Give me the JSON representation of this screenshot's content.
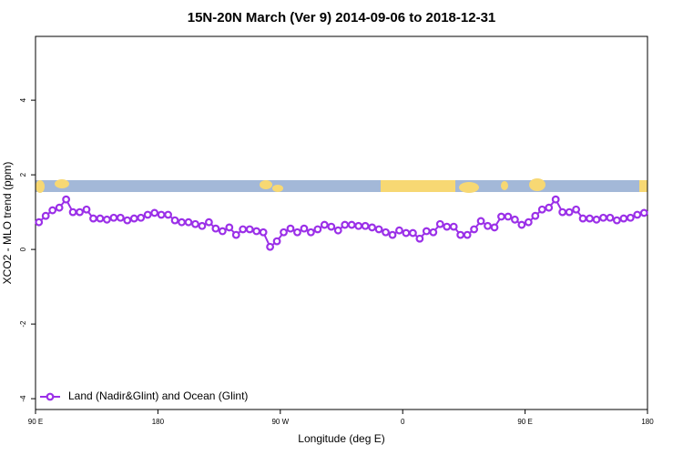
{
  "chart_data": {
    "type": "line",
    "title": "15N-20N March (Ver 9)   2014-09-06 to 2018-12-31",
    "xlabel": "Longitude (deg E)",
    "ylabel": "XCO2 - MLO trend (ppm)",
    "x": [
      92.5,
      97.5,
      102.5,
      107.5,
      112.5,
      117.5,
      122.5,
      127.5,
      132.5,
      137.5,
      142.5,
      147.5,
      152.5,
      157.5,
      162.5,
      167.5,
      172.5,
      177.5,
      182.5,
      187.5,
      192.5,
      197.5,
      202.5,
      207.5,
      212.5,
      217.5,
      222.5,
      227.5,
      232.5,
      237.5,
      242.5,
      247.5,
      252.5,
      257.5,
      262.5,
      267.5,
      272.5,
      277.5,
      282.5,
      287.5,
      292.5,
      297.5,
      302.5,
      307.5,
      312.5,
      317.5,
      322.5,
      327.5,
      332.5,
      337.5,
      342.5,
      347.5,
      352.5,
      357.5,
      362.5,
      367.5,
      372.5,
      377.5,
      382.5,
      387.5,
      392.5,
      397.5,
      402.5,
      407.5,
      412.5,
      417.5,
      422.5,
      427.5,
      432.5,
      437.5,
      442.5,
      447.5,
      452.5,
      457.5,
      462.5,
      467.5,
      472.5,
      477.5,
      482.5,
      487.5,
      492.5,
      497.5,
      502.5,
      507.5,
      512.5,
      517.5,
      522.5,
      527.5,
      532.5,
      537.5
    ],
    "series": [
      {
        "name": "Land (Nadir&Glint) and Ocean (Glint)",
        "color": "#9b30e8",
        "values": [
          0.73,
          0.9,
          1.05,
          1.12,
          1.34,
          1.0,
          1.0,
          1.07,
          0.83,
          0.83,
          0.8,
          0.85,
          0.85,
          0.78,
          0.83,
          0.85,
          0.93,
          0.98,
          0.93,
          0.93,
          0.78,
          0.73,
          0.73,
          0.68,
          0.63,
          0.73,
          0.56,
          0.49,
          0.59,
          0.39,
          0.54,
          0.54,
          0.49,
          0.46,
          0.07,
          0.22,
          0.46,
          0.56,
          0.46,
          0.56,
          0.46,
          0.54,
          0.66,
          0.61,
          0.51,
          0.66,
          0.66,
          0.63,
          0.63,
          0.59,
          0.54,
          0.46,
          0.39,
          0.51,
          0.44,
          0.44,
          0.29,
          0.49,
          0.46,
          0.68,
          0.61,
          0.61,
          0.39,
          0.39,
          0.54,
          0.76,
          0.63,
          0.59,
          0.88,
          0.88,
          0.8,
          0.66,
          0.73,
          0.9,
          1.07,
          1.12,
          1.34,
          1.0,
          1.0,
          1.07,
          0.83,
          0.83,
          0.8,
          0.85,
          0.85,
          0.78,
          0.83,
          0.85,
          0.93,
          0.98
        ]
      }
    ],
    "xlim": [
      90,
      540
    ],
    "xticks": [
      {
        "value": 90,
        "label": "90 E"
      },
      180,
      {
        "value": 270,
        "label": "90 W"
      },
      0,
      {
        "value": 450,
        "label": "90 E"
      },
      {
        "value": 540,
        "label": "180"
      }
    ],
    "ylim": [
      -4.29,
      5.71
    ],
    "yticks": [
      -4,
      -2,
      0,
      2,
      4
    ],
    "legend": "bottom-left"
  }
}
